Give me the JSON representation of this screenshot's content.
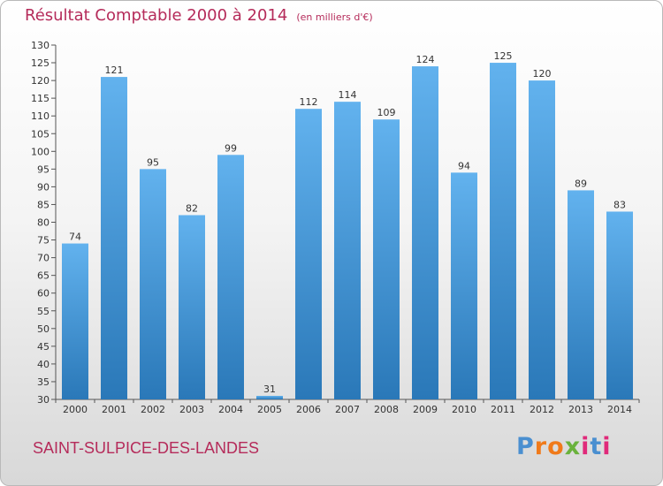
{
  "header": {
    "title": "Résultat Comptable 2000 à 2014",
    "unit": "(en milliers d'€)"
  },
  "footer": {
    "commune": "SAINT-SULPICE-DES-LANDES",
    "logo_letters": [
      "P",
      "r",
      "o",
      "x",
      "i",
      "t",
      "i"
    ]
  },
  "colors": {
    "title": "#b52b5a",
    "bar_top": "#62b2ee",
    "bar_bottom": "#2a78b8",
    "logo": [
      "#4a8fd0",
      "#f07a1a",
      "#f07a1a",
      "#6ab23c",
      "#e02a7a",
      "#4a8fd0",
      "#e02a7a"
    ]
  },
  "chart_data": {
    "type": "bar",
    "title": "Résultat Comptable 2000 à 2014",
    "subtitle": "(en milliers d'€)",
    "xlabel": "",
    "ylabel": "",
    "categories": [
      "2000",
      "2001",
      "2002",
      "2003",
      "2004",
      "2005",
      "2006",
      "2007",
      "2008",
      "2009",
      "2010",
      "2011",
      "2012",
      "2013",
      "2014"
    ],
    "values": [
      74,
      121,
      95,
      82,
      99,
      31,
      112,
      114,
      109,
      124,
      94,
      125,
      120,
      89,
      83
    ],
    "ylim": [
      30,
      130
    ],
    "yticks": [
      30,
      35,
      40,
      45,
      50,
      55,
      60,
      65,
      70,
      75,
      80,
      85,
      90,
      95,
      100,
      105,
      110,
      115,
      120,
      125,
      130
    ],
    "grid": false,
    "legend": "none"
  }
}
